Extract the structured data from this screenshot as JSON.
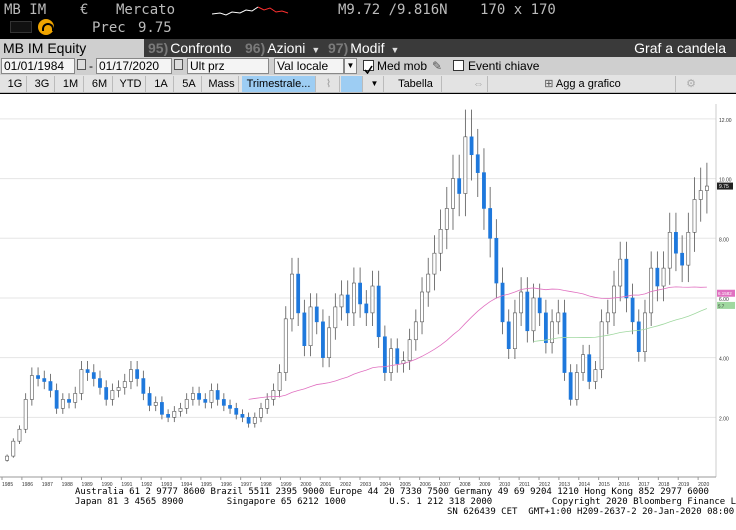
{
  "topbar": {
    "ticker": "MB IM",
    "currency": "€",
    "market_label": "Mercato",
    "prev_label": "Prec",
    "prev_value": "9.75",
    "bid_ask": "M9.72 /9.816N",
    "size": "170 x 170"
  },
  "toolbar": {
    "security": "MB IM Equity",
    "compare_num": "95)",
    "compare_label": "Confronto",
    "actions_num": "96)",
    "actions_label": "Azioni",
    "edit_num": "97)",
    "edit_label": "Modif",
    "chart_type": "Graf a candela"
  },
  "settings": {
    "start_date": "01/01/1984",
    "end_date": "01/17/2020",
    "price_type": "Ult prz",
    "currency_mode": "Val locale",
    "moving_avg_label": "Med mob",
    "moving_avg_checked": true,
    "key_events_label": "Eventi chiave",
    "key_events_checked": false
  },
  "periods": {
    "items": [
      "1G",
      "3G",
      "1M",
      "6M",
      "YTD",
      "1A",
      "5A",
      "Mass"
    ],
    "frequency": "Trimestrale...",
    "table_label": "Tabella",
    "add_label": "Agg a grafico"
  },
  "chart_data": {
    "type": "candlestick",
    "x_ticks": [
      "1985",
      "1986",
      "1987",
      "1988",
      "1989",
      "1990",
      "1991",
      "1992",
      "1993",
      "1994",
      "1995",
      "1996",
      "1997",
      "1998",
      "1999",
      "2000",
      "2001",
      "2002",
      "2003",
      "2004",
      "2005",
      "2006",
      "2007",
      "2008",
      "2009",
      "2010",
      "2011",
      "2012",
      "2013",
      "2014",
      "2015",
      "2016",
      "2017",
      "2018",
      "2019",
      "2020"
    ],
    "y_ticks": [
      "2.00",
      "4.00",
      "6.00",
      "8.00",
      "10.00",
      "12.00"
    ],
    "ylim": [
      0,
      12.5
    ],
    "last_price_label": "9.75",
    "ma_labels": [
      "6.1582",
      "5.7"
    ],
    "colors": {
      "up": "#ffffff",
      "down": "#1e78dc",
      "ma1": "#e070c0",
      "ma2": "#a0d8a0"
    },
    "candles_note": "quarterly",
    "series": [
      {
        "name": "price",
        "values": [
          0.7,
          1.2,
          1.6,
          2.6,
          3.4,
          3.3,
          3.2,
          2.9,
          2.3,
          2.6,
          2.5,
          2.8,
          3.6,
          3.5,
          3.3,
          3.0,
          2.6,
          2.9,
          3.0,
          3.2,
          3.6,
          3.3,
          2.8,
          2.4,
          2.5,
          2.1,
          2.0,
          2.2,
          2.3,
          2.6,
          2.8,
          2.6,
          2.5,
          2.9,
          2.6,
          2.4,
          2.3,
          2.1,
          2.0,
          1.8,
          2.0,
          2.3,
          2.6,
          2.9,
          3.5,
          5.3,
          6.8,
          5.5,
          4.4,
          5.7,
          5.2,
          4.0,
          5.0,
          5.7,
          6.1,
          5.5,
          6.5,
          5.8,
          5.5,
          6.4,
          4.7,
          3.5,
          4.3,
          3.8,
          3.9,
          4.6,
          5.2,
          6.2,
          6.8,
          7.5,
          8.3,
          9.0,
          10.0,
          9.5,
          11.4,
          10.8,
          10.2,
          9.0,
          8.0,
          6.5,
          5.2,
          4.3,
          5.5,
          6.2,
          4.9,
          6.0,
          5.5,
          4.5,
          5.2,
          5.5,
          3.5,
          2.6,
          3.5,
          4.1,
          3.2,
          3.6,
          5.2,
          5.5,
          6.4,
          7.3,
          6.0,
          5.2,
          4.2,
          5.5,
          7.0,
          6.4,
          7.0,
          8.2,
          7.5,
          7.1,
          8.2,
          9.3,
          9.6,
          9.75
        ]
      },
      {
        "name": "ma",
        "values": []
      }
    ]
  },
  "footer": {
    "line1": "Australia 61 2 9777 8600 Brazil 5511 2395 9000 Europe 44 20 7330 7500 Germany 49 69 9204 1210 Hong Kong 852 2977 6000",
    "line2": "Japan 81 3 4565 8900        Singapore 65 6212 1000        U.S. 1 212 318 2000           Copyright 2020 Bloomberg Finance L.P.",
    "line3": "SN 626439 CET  GMT+1:00 H209-2637-2 20-Jan-2020 08:00:34"
  }
}
